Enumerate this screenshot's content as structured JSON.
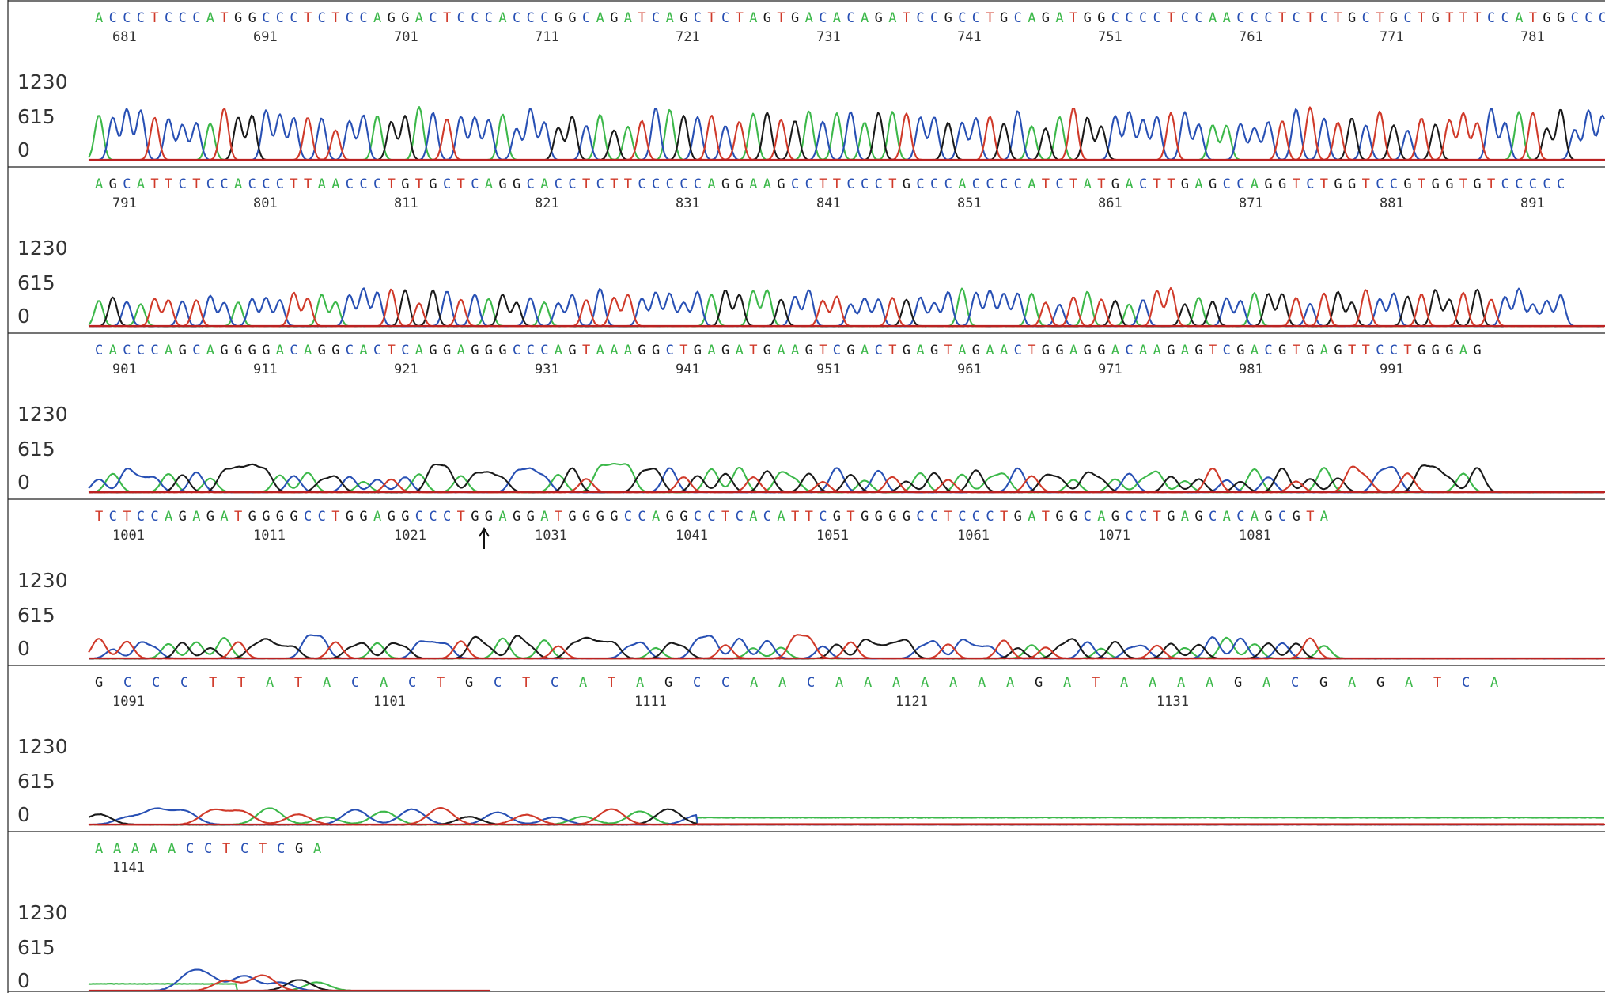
{
  "chart_data": {
    "type": "line",
    "description_axis": "chromatogram",
    "y_ticks": [
      "1230",
      "615",
      "0"
    ],
    "ylim": [
      0,
      1230
    ],
    "colors": {
      "A": "#3cb84a",
      "C": "#2850b4",
      "G": "#1a1a1a",
      "T": "#d03a2a"
    },
    "panels": [
      {
        "sequence": "ACCCTCCCATGGCCCTCTCCAGGACTCCCACCCGGCAGATCAGCTCTAGTGACACAGATCCGCCTGCAGATGGCCCCTCCAACCCTCTCTGCTGCTGTTTCCATGGCCC",
        "positions": [
          "681",
          "691",
          "701",
          "711",
          "721",
          "731",
          "741",
          "751",
          "761",
          "771",
          "781"
        ]
      },
      {
        "sequence": "AGCATTCTCCACCCTTAACCCTGTGCTCAGGCACCTCTTCCCCCAGGAAGCCTTCCCTGCCCACCCCATCTATGACTTGAGCCAGGTCTGGTCCGTGGTGTCCCCC",
        "positions": [
          "791",
          "801",
          "811",
          "821",
          "831",
          "841",
          "851",
          "861",
          "871",
          "881",
          "891"
        ]
      },
      {
        "sequence": "CACCCAGCAGGGGACAGGCACTCAGGAGGGCCCAGTAAAGGCTGAGATGAAGTCGACTGAGTAGAACTGGAGGACAAGAGTCGACGTGAGTTCCTGGGAG",
        "positions": [
          "901",
          "911",
          "921",
          "931",
          "941",
          "951",
          "961",
          "971",
          "981",
          "991"
        ]
      },
      {
        "sequence": "TCTCCAGAGATGGGGCCTGGAGGCCCTGGAGGATGGGGCCAGGCCTCACATTCGTGGGGCCTCCCTGATGGCAGCCTGAGCACAGCGTA",
        "positions": [
          "1001",
          "1011",
          "1021",
          "1031",
          "1041",
          "1051",
          "1061",
          "1071",
          "1081"
        ],
        "marker_after": "1021"
      },
      {
        "sequence": "GCCCTTATACACTGCTCATAGCCAACAAAAAAAGATAAAAGACGAGATCA",
        "positions": [
          "1091",
          "1101",
          "1111",
          "1121",
          "1131"
        ]
      },
      {
        "sequence": "AAAAACCTCTCGA",
        "positions": [
          "1141"
        ]
      }
    ]
  }
}
